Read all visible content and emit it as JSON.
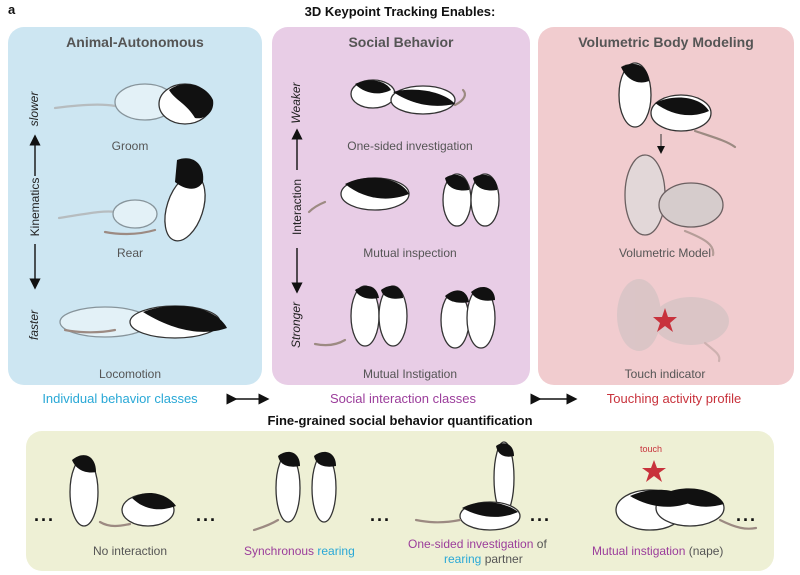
{
  "panel_label": "a",
  "main_title": "3D Keypoint Tracking Enables:",
  "panels": {
    "animal": {
      "title": "Animal-Autonomous",
      "captions": [
        "Groom",
        "Rear",
        "Locomotion"
      ],
      "axis": {
        "top": "slower",
        "middle": "Kinematics",
        "bottom": "faster"
      },
      "class_label": "Individual behavior classes",
      "class_color": "#29a8d6"
    },
    "social": {
      "title": "Social Behavior",
      "captions": [
        "One-sided investigation",
        "Mutual inspection",
        "Mutual Instigation"
      ],
      "axis": {
        "top": "Weaker",
        "middle": "Interaction",
        "bottom": "Stronger"
      },
      "class_label": "Social interaction classes",
      "class_color": "#9b3d9b"
    },
    "volumetric": {
      "title": "Volumetric Body Modeling",
      "captions": [
        "Volumetric Model",
        "Touch indicator"
      ],
      "class_label": "Touching activity profile",
      "class_color": "#c8323c"
    }
  },
  "bottom": {
    "title": "Fine-grained social behavior quantification",
    "touch_label": "touch",
    "dots": "...",
    "captions": {
      "no_interaction": "No interaction",
      "sync_a": "Synchronous",
      "sync_b": "rearing",
      "onesided_a": "One-sided investigation",
      "onesided_b": "of",
      "onesided_c": "rearing",
      "onesided_d": "partner",
      "mutual_a": "Mutual instigation",
      "mutual_b": "(nape)"
    },
    "colors": {
      "purple": "#9b3d9b",
      "blue": "#29a8d6",
      "gray": "#555555",
      "star": "#c8323c"
    }
  }
}
